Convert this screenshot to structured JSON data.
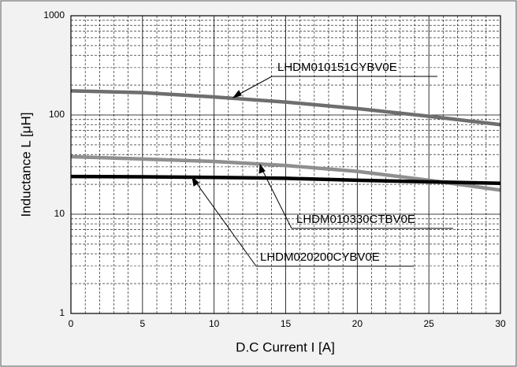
{
  "chart_data": {
    "type": "line",
    "xlabel": "D.C Current I [A]",
    "ylabel": "Inductance L  [μH]",
    "x": [
      0,
      5,
      10,
      15,
      20,
      25,
      30
    ],
    "series": [
      {
        "name": "LHDM010151CYBV0E",
        "color": "#6e6e6e",
        "values": [
          175,
          168,
          152,
          135,
          116,
          97,
          80
        ]
      },
      {
        "name": "LHDM010330CTBV0E",
        "color": "#8f8f8f",
        "values": [
          38,
          36,
          34,
          31,
          27,
          22,
          17.5
        ]
      },
      {
        "name": "LHDM020200CYBV0E",
        "color": "#000000",
        "values": [
          24,
          23.8,
          23.5,
          23,
          22,
          21.2,
          20.5
        ]
      }
    ],
    "xlim": [
      0,
      30
    ],
    "xticks": [
      0,
      5,
      10,
      15,
      20,
      25,
      30
    ],
    "ylim": [
      1,
      1000
    ],
    "yticks": [
      1,
      10,
      100,
      1000
    ],
    "ylog": true,
    "grid": true
  }
}
